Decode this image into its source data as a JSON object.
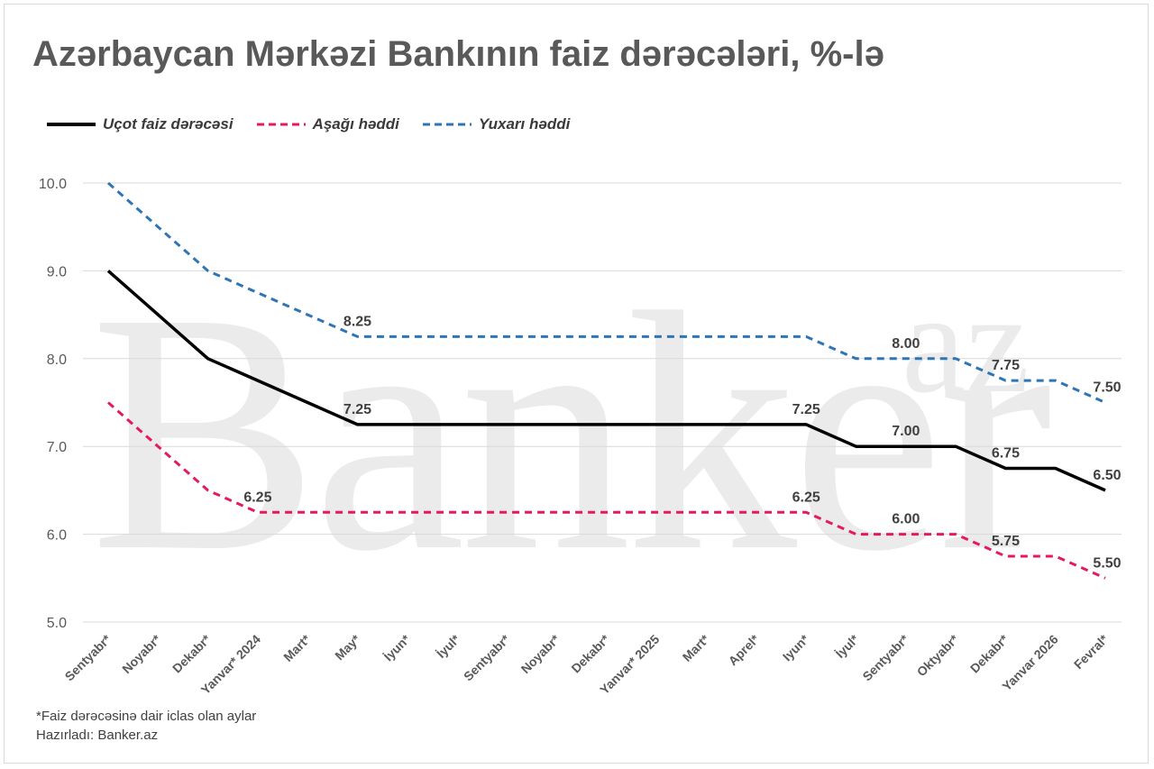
{
  "title": "Azərbaycan Mərkəzi Bankının faiz dərəcələri, %-lə",
  "watermark": {
    "main": "Banker",
    "sup": "az"
  },
  "footnote": "*Faiz dərəcəsinə dair iclas olan aylar",
  "source": "Hazırladı: Banker.az",
  "chart_data": {
    "type": "line",
    "categories": [
      "Sentyabr*",
      "Noyabr*",
      "Dekabr*",
      "Yanvar* 2024",
      "Mart*",
      "May*",
      "İyun*",
      "İyul*",
      "Sentyabr*",
      "Noyabr*",
      "Dekabr*",
      "Yanvar* 2025",
      "Mart*",
      "Aprel*",
      "Iyun*",
      "İyul*",
      "Sentyabr*",
      "Oktyabr*",
      "Dekabr*",
      "Yanvar 2026",
      "Fevral*"
    ],
    "ylim": [
      5.0,
      10.0
    ],
    "yticks": [
      "5.0",
      "6.0",
      "7.0",
      "8.0",
      "9.0",
      "10.0"
    ],
    "grid": true,
    "legend_position": "top-left",
    "series": [
      {
        "name": "Uçot faiz dərəcəsi",
        "color": "#000000",
        "dash": "solid",
        "values": [
          9.0,
          8.5,
          8.0,
          7.75,
          7.5,
          7.25,
          7.25,
          7.25,
          7.25,
          7.25,
          7.25,
          7.25,
          7.25,
          7.25,
          7.25,
          7.0,
          7.0,
          7.0,
          6.75,
          6.75,
          6.5
        ],
        "labels": [
          {
            "i": 5,
            "text": "7.25"
          },
          {
            "i": 14,
            "text": "7.25"
          },
          {
            "i": 16,
            "text": "7.00"
          },
          {
            "i": 18,
            "text": "6.75"
          },
          {
            "i": 20,
            "text": "6.50"
          }
        ]
      },
      {
        "name": "Aşağı həddi",
        "color": "#e6195f",
        "dash": "dashed",
        "values": [
          7.5,
          7.0,
          6.5,
          6.25,
          6.25,
          6.25,
          6.25,
          6.25,
          6.25,
          6.25,
          6.25,
          6.25,
          6.25,
          6.25,
          6.25,
          6.0,
          6.0,
          6.0,
          5.75,
          5.75,
          5.5
        ],
        "labels": [
          {
            "i": 3,
            "text": "6.25"
          },
          {
            "i": 14,
            "text": "6.25"
          },
          {
            "i": 16,
            "text": "6.00"
          },
          {
            "i": 18,
            "text": "5.75"
          },
          {
            "i": 20,
            "text": "5.50"
          }
        ]
      },
      {
        "name": "Yuxarı həddi",
        "color": "#2e75b6",
        "dash": "dashed",
        "values": [
          10.0,
          9.5,
          9.0,
          8.75,
          8.5,
          8.25,
          8.25,
          8.25,
          8.25,
          8.25,
          8.25,
          8.25,
          8.25,
          8.25,
          8.25,
          8.0,
          8.0,
          8.0,
          7.75,
          7.75,
          7.5
        ],
        "labels": [
          {
            "i": 5,
            "text": "8.25"
          },
          {
            "i": 16,
            "text": "8.00"
          },
          {
            "i": 18,
            "text": "7.75"
          },
          {
            "i": 20,
            "text": "7.50"
          }
        ]
      }
    ]
  }
}
